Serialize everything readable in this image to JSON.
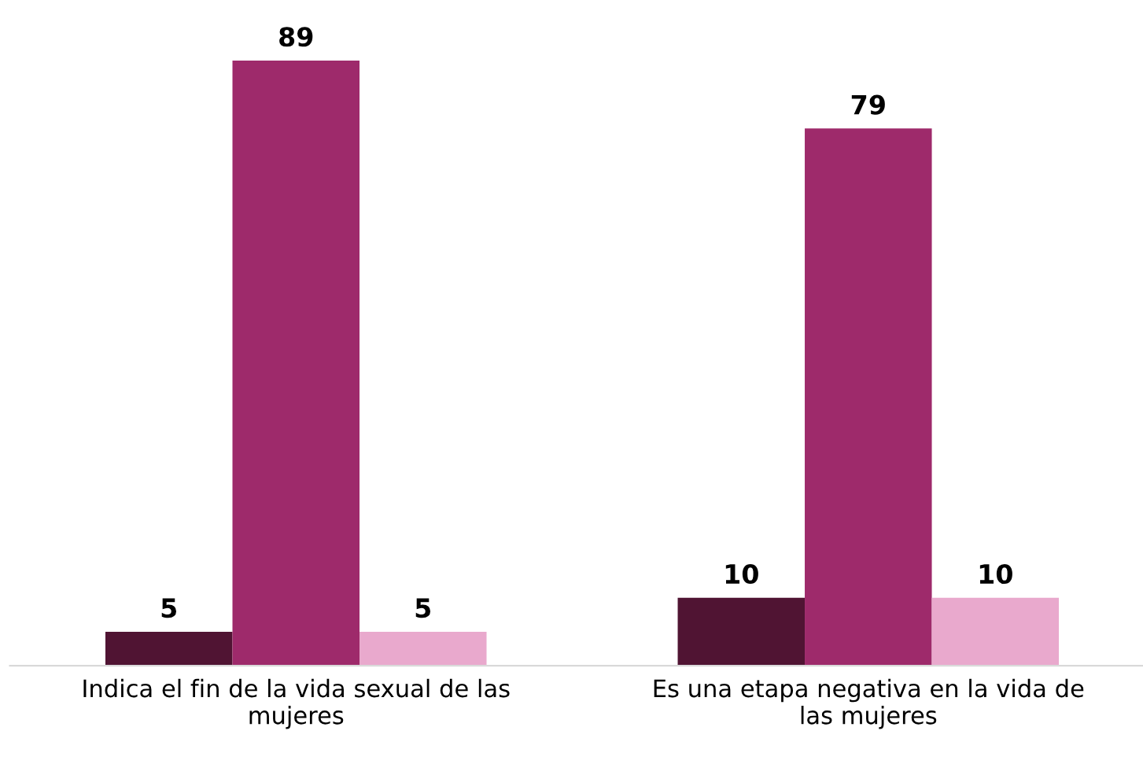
{
  "chart_data": {
    "type": "bar",
    "categories": [
      "Indica el fin de la vida sexual de las\nmujeres",
      "Es una etapa negativa en la vida de\nlas mujeres"
    ],
    "series": [
      {
        "color": "#501433",
        "values": [
          5,
          10
        ]
      },
      {
        "color": "#9e2a6b",
        "values": [
          89,
          79
        ]
      },
      {
        "color": "#e9a9cd",
        "values": [
          5,
          10
        ]
      }
    ],
    "data_labels": true,
    "grid": false,
    "legend": false,
    "tick_labels": "x"
  }
}
